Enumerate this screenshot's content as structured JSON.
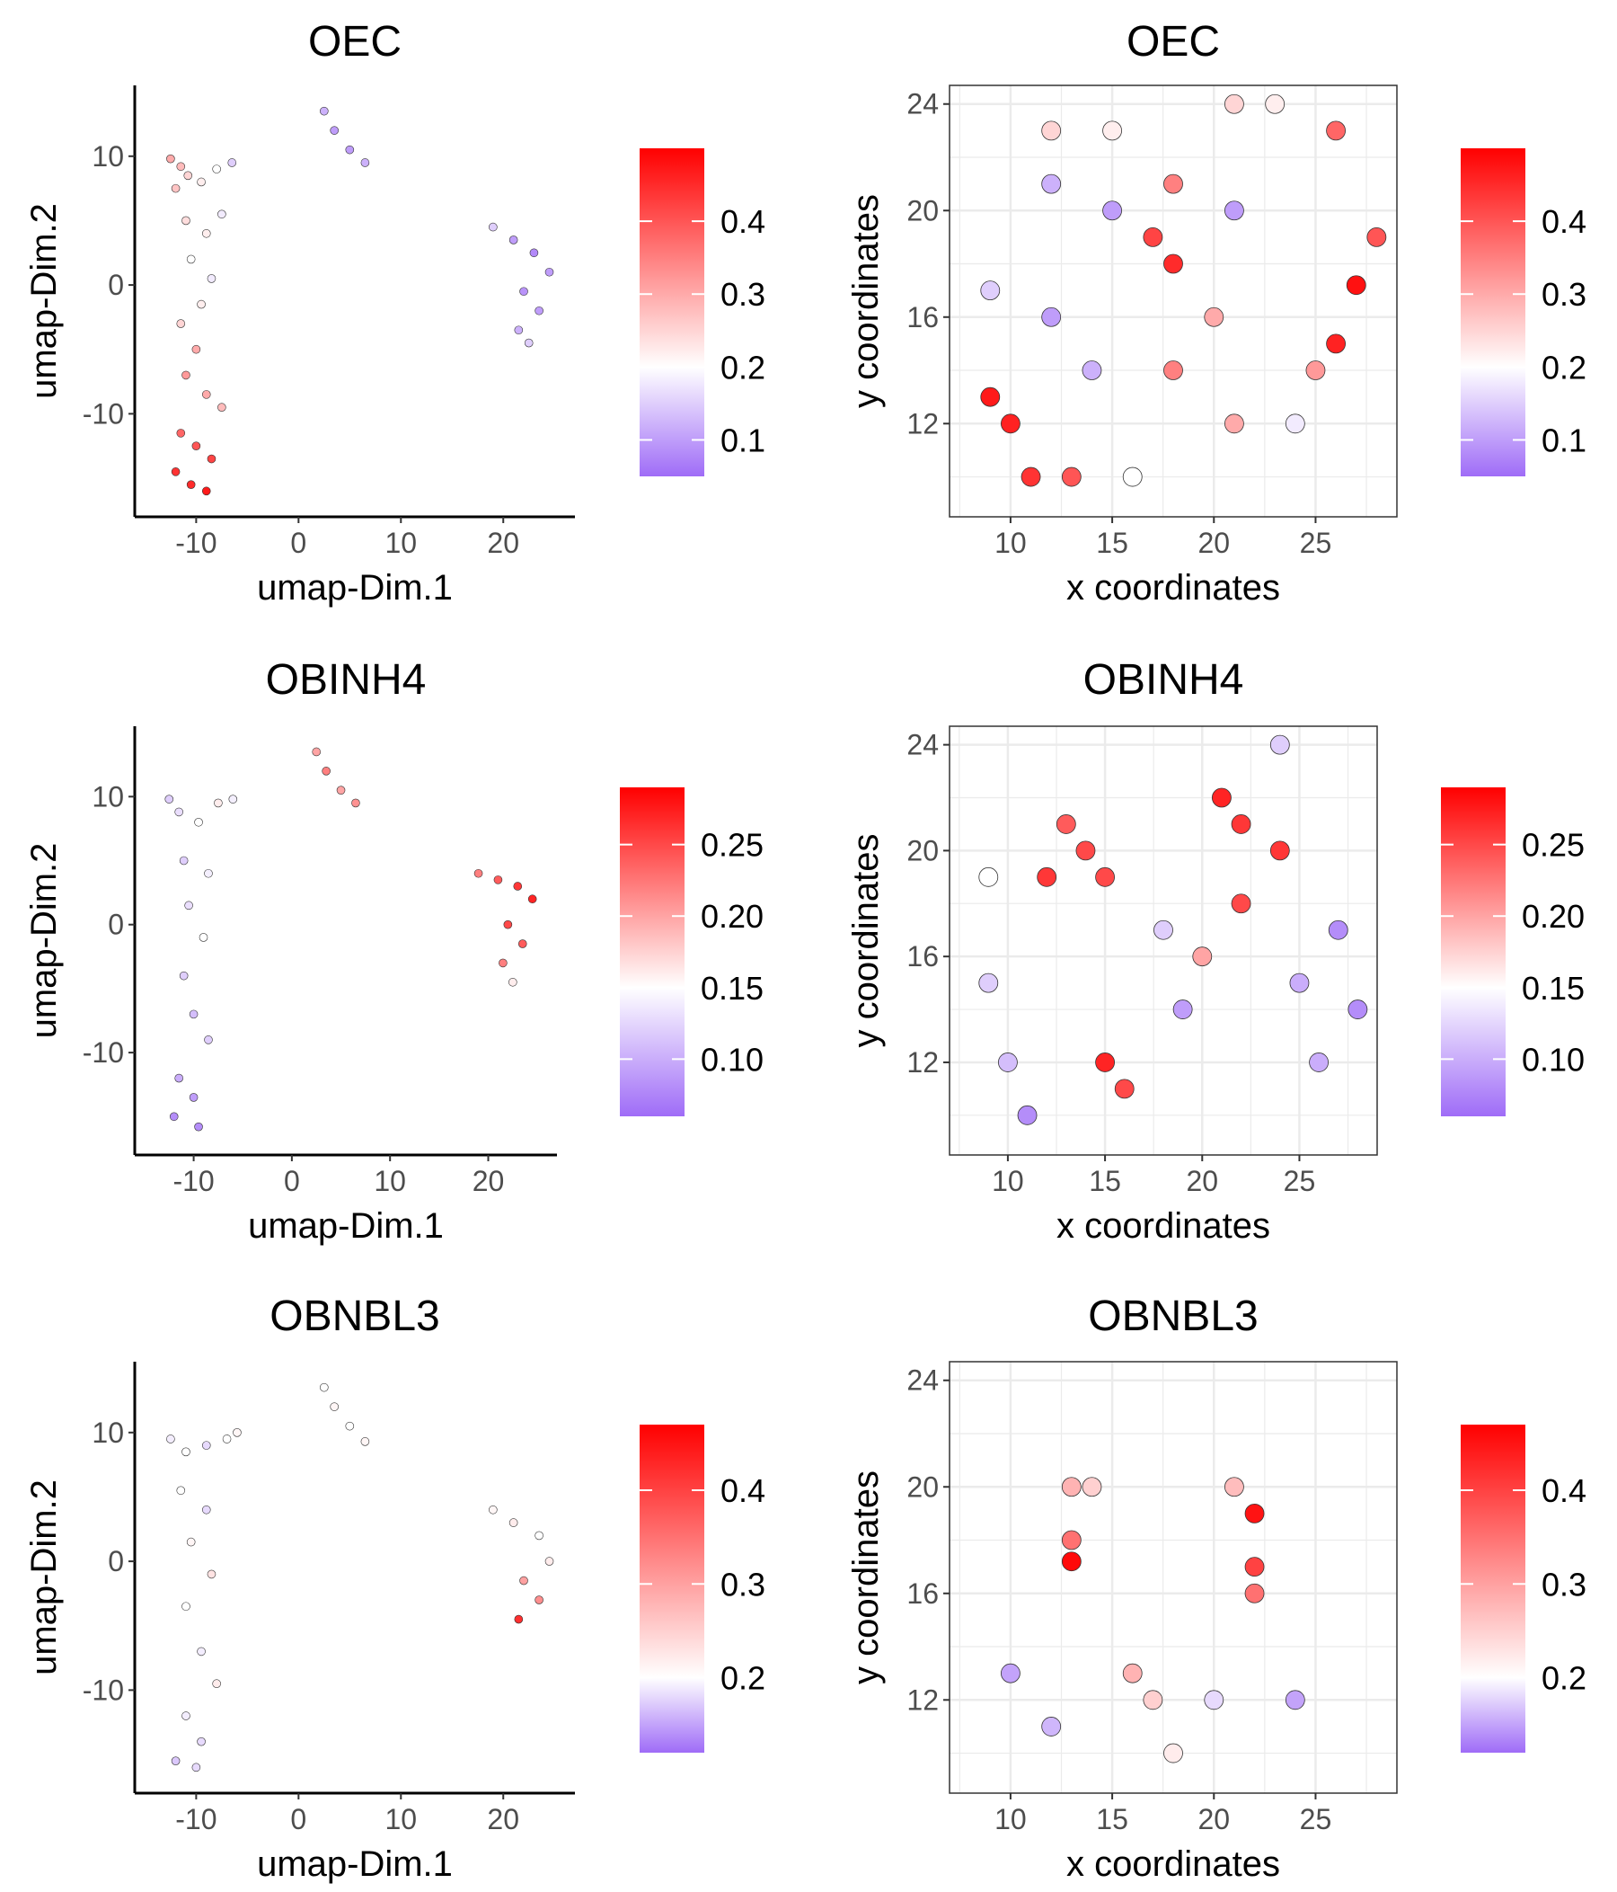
{
  "colors": {
    "low": "#9f6cf7",
    "mid": "#ffffff",
    "high": "#ff0000",
    "point_stroke": "#333333",
    "grid": "#ebebeb",
    "panel_border": "#333333",
    "axis_line": "#000000"
  },
  "chart_data": [
    {
      "type": "scatter",
      "title": "OEC",
      "xlabel": "umap-Dim.1",
      "ylabel": "umap-Dim.2",
      "xlim": [
        -16,
        27
      ],
      "ylim": [
        -18,
        15.5
      ],
      "x_ticks": [
        -10,
        0,
        10,
        20
      ],
      "y_ticks": [
        -10,
        0,
        10
      ],
      "grid": false,
      "legend_position": "right",
      "color_range": [
        0.05,
        0.5
      ],
      "color_mid": 0.2,
      "color_ticks": [
        0.1,
        0.2,
        0.3,
        0.4
      ],
      "points": [
        {
          "x": -12.5,
          "y": 9.8,
          "value": 0.3
        },
        {
          "x": -11.5,
          "y": 9.2,
          "value": 0.28
        },
        {
          "x": -10.8,
          "y": 8.5,
          "value": 0.25
        },
        {
          "x": -12.0,
          "y": 7.5,
          "value": 0.27
        },
        {
          "x": -9.5,
          "y": 8.0,
          "value": 0.22
        },
        {
          "x": -8.0,
          "y": 9.0,
          "value": 0.2
        },
        {
          "x": -6.5,
          "y": 9.5,
          "value": 0.15
        },
        {
          "x": -11.0,
          "y": 5.0,
          "value": 0.24
        },
        {
          "x": -9.0,
          "y": 4.0,
          "value": 0.22
        },
        {
          "x": -7.5,
          "y": 5.5,
          "value": 0.18
        },
        {
          "x": -10.5,
          "y": 2.0,
          "value": 0.2
        },
        {
          "x": -8.5,
          "y": 0.5,
          "value": 0.18
        },
        {
          "x": -9.5,
          "y": -1.5,
          "value": 0.22
        },
        {
          "x": -11.5,
          "y": -3.0,
          "value": 0.25
        },
        {
          "x": -10.0,
          "y": -5.0,
          "value": 0.3
        },
        {
          "x": -11.0,
          "y": -7.0,
          "value": 0.32
        },
        {
          "x": -9.0,
          "y": -8.5,
          "value": 0.3
        },
        {
          "x": -7.5,
          "y": -9.5,
          "value": 0.28
        },
        {
          "x": -11.5,
          "y": -11.5,
          "value": 0.38
        },
        {
          "x": -10.0,
          "y": -12.5,
          "value": 0.4
        },
        {
          "x": -8.5,
          "y": -13.5,
          "value": 0.42
        },
        {
          "x": -12.0,
          "y": -14.5,
          "value": 0.44
        },
        {
          "x": -10.5,
          "y": -15.5,
          "value": 0.45
        },
        {
          "x": -9.0,
          "y": -16.0,
          "value": 0.47
        },
        {
          "x": 2.5,
          "y": 13.5,
          "value": 0.12
        },
        {
          "x": 3.5,
          "y": 12.0,
          "value": 0.1
        },
        {
          "x": 5.0,
          "y": 10.5,
          "value": 0.1
        },
        {
          "x": 6.5,
          "y": 9.5,
          "value": 0.12
        },
        {
          "x": 19.0,
          "y": 4.5,
          "value": 0.15
        },
        {
          "x": 21.0,
          "y": 3.5,
          "value": 0.1
        },
        {
          "x": 23.0,
          "y": 2.5,
          "value": 0.08
        },
        {
          "x": 24.5,
          "y": 1.0,
          "value": 0.1
        },
        {
          "x": 22.0,
          "y": -0.5,
          "value": 0.09
        },
        {
          "x": 23.5,
          "y": -2.0,
          "value": 0.1
        },
        {
          "x": 21.5,
          "y": -3.5,
          "value": 0.12
        },
        {
          "x": 22.5,
          "y": -4.5,
          "value": 0.15
        }
      ]
    },
    {
      "type": "scatter",
      "title": "OEC",
      "xlabel": "x coordinates",
      "ylabel": "y coordinates",
      "xlim": [
        7,
        29
      ],
      "ylim": [
        8.5,
        24.7
      ],
      "x_ticks": [
        10,
        15,
        20,
        25
      ],
      "y_ticks": [
        12,
        16,
        20,
        24
      ],
      "grid": true,
      "legend_position": "right",
      "color_range": [
        0.05,
        0.5
      ],
      "color_mid": 0.2,
      "color_ticks": [
        0.1,
        0.2,
        0.3,
        0.4
      ],
      "points": [
        {
          "x": 12,
          "y": 23,
          "value": 0.25
        },
        {
          "x": 15,
          "y": 23,
          "value": 0.22
        },
        {
          "x": 21,
          "y": 24,
          "value": 0.25
        },
        {
          "x": 23,
          "y": 24,
          "value": 0.22
        },
        {
          "x": 18,
          "y": 21,
          "value": 0.35
        },
        {
          "x": 26,
          "y": 23,
          "value": 0.38
        },
        {
          "x": 12,
          "y": 21,
          "value": 0.12
        },
        {
          "x": 17,
          "y": 19,
          "value": 0.42
        },
        {
          "x": 18,
          "y": 18,
          "value": 0.45
        },
        {
          "x": 28,
          "y": 19,
          "value": 0.4
        },
        {
          "x": 27,
          "y": 17.2,
          "value": 0.48
        },
        {
          "x": 26,
          "y": 15,
          "value": 0.46
        },
        {
          "x": 15,
          "y": 20,
          "value": 0.1
        },
        {
          "x": 21,
          "y": 20,
          "value": 0.1
        },
        {
          "x": 9,
          "y": 17,
          "value": 0.15
        },
        {
          "x": 12,
          "y": 16,
          "value": 0.1
        },
        {
          "x": 20,
          "y": 16,
          "value": 0.3
        },
        {
          "x": 14,
          "y": 14,
          "value": 0.12
        },
        {
          "x": 18,
          "y": 14,
          "value": 0.35
        },
        {
          "x": 9,
          "y": 13,
          "value": 0.47
        },
        {
          "x": 10,
          "y": 12,
          "value": 0.46
        },
        {
          "x": 11,
          "y": 10,
          "value": 0.44
        },
        {
          "x": 13,
          "y": 10,
          "value": 0.4
        },
        {
          "x": 16,
          "y": 10,
          "value": 0.2
        },
        {
          "x": 21,
          "y": 12,
          "value": 0.3
        },
        {
          "x": 25,
          "y": 14,
          "value": 0.32
        },
        {
          "x": 24,
          "y": 12,
          "value": 0.18
        }
      ]
    },
    {
      "type": "scatter",
      "title": "OBINH4",
      "xlabel": "umap-Dim.1",
      "ylabel": "umap-Dim.2",
      "xlim": [
        -16,
        27
      ],
      "ylim": [
        -18,
        15.5
      ],
      "x_ticks": [
        -10,
        0,
        10,
        20
      ],
      "y_ticks": [
        -10,
        0,
        10
      ],
      "grid": false,
      "legend_position": "right",
      "color_range": [
        0.06,
        0.29
      ],
      "color_mid": 0.15,
      "color_ticks": [
        0.1,
        0.15,
        0.2,
        0.25
      ],
      "points": [
        {
          "x": -12.5,
          "y": 9.8,
          "value": 0.12
        },
        {
          "x": -11.5,
          "y": 8.8,
          "value": 0.13
        },
        {
          "x": -9.5,
          "y": 8.0,
          "value": 0.15
        },
        {
          "x": -7.5,
          "y": 9.5,
          "value": 0.16
        },
        {
          "x": -6.0,
          "y": 9.8,
          "value": 0.14
        },
        {
          "x": -11.0,
          "y": 5.0,
          "value": 0.12
        },
        {
          "x": -8.5,
          "y": 4.0,
          "value": 0.14
        },
        {
          "x": -10.5,
          "y": 1.5,
          "value": 0.13
        },
        {
          "x": -9.0,
          "y": -1.0,
          "value": 0.15
        },
        {
          "x": -11.0,
          "y": -4.0,
          "value": 0.12
        },
        {
          "x": -10.0,
          "y": -7.0,
          "value": 0.11
        },
        {
          "x": -8.5,
          "y": -9.0,
          "value": 0.12
        },
        {
          "x": -11.5,
          "y": -12.0,
          "value": 0.1
        },
        {
          "x": -10.0,
          "y": -13.5,
          "value": 0.09
        },
        {
          "x": -12.0,
          "y": -15.0,
          "value": 0.08
        },
        {
          "x": -9.5,
          "y": -15.8,
          "value": 0.08
        },
        {
          "x": 2.5,
          "y": 13.5,
          "value": 0.2
        },
        {
          "x": 3.5,
          "y": 12.0,
          "value": 0.22
        },
        {
          "x": 5.0,
          "y": 10.5,
          "value": 0.2
        },
        {
          "x": 6.5,
          "y": 9.5,
          "value": 0.21
        },
        {
          "x": 19.0,
          "y": 4.0,
          "value": 0.22
        },
        {
          "x": 21.0,
          "y": 3.5,
          "value": 0.24
        },
        {
          "x": 23.0,
          "y": 3.0,
          "value": 0.26
        },
        {
          "x": 24.5,
          "y": 2.0,
          "value": 0.27
        },
        {
          "x": 22.0,
          "y": 0.0,
          "value": 0.25
        },
        {
          "x": 23.5,
          "y": -1.5,
          "value": 0.24
        },
        {
          "x": 21.5,
          "y": -3.0,
          "value": 0.22
        },
        {
          "x": 22.5,
          "y": -4.5,
          "value": 0.16
        }
      ]
    },
    {
      "type": "scatter",
      "title": "OBINH4",
      "xlabel": "x coordinates",
      "ylabel": "y coordinates",
      "xlim": [
        7,
        29
      ],
      "ylim": [
        8.5,
        24.7
      ],
      "x_ticks": [
        10,
        15,
        20,
        25
      ],
      "y_ticks": [
        12,
        16,
        20,
        24
      ],
      "grid": true,
      "legend_position": "right",
      "color_range": [
        0.06,
        0.29
      ],
      "color_mid": 0.15,
      "color_ticks": [
        0.1,
        0.15,
        0.2,
        0.25
      ],
      "points": [
        {
          "x": 13,
          "y": 21,
          "value": 0.24
        },
        {
          "x": 14,
          "y": 20,
          "value": 0.25
        },
        {
          "x": 12,
          "y": 19,
          "value": 0.26
        },
        {
          "x": 15,
          "y": 19,
          "value": 0.25
        },
        {
          "x": 21,
          "y": 22,
          "value": 0.27
        },
        {
          "x": 22,
          "y": 21,
          "value": 0.26
        },
        {
          "x": 24,
          "y": 20,
          "value": 0.26
        },
        {
          "x": 22,
          "y": 18,
          "value": 0.25
        },
        {
          "x": 15,
          "y": 12,
          "value": 0.27
        },
        {
          "x": 16,
          "y": 11,
          "value": 0.25
        },
        {
          "x": 24,
          "y": 24,
          "value": 0.12
        },
        {
          "x": 27,
          "y": 17,
          "value": 0.08
        },
        {
          "x": 28,
          "y": 14,
          "value": 0.08
        },
        {
          "x": 19,
          "y": 14,
          "value": 0.09
        },
        {
          "x": 9,
          "y": 15,
          "value": 0.12
        },
        {
          "x": 10,
          "y": 12,
          "value": 0.11
        },
        {
          "x": 11,
          "y": 10,
          "value": 0.08
        },
        {
          "x": 9,
          "y": 19,
          "value": 0.15
        },
        {
          "x": 18,
          "y": 17,
          "value": 0.12
        },
        {
          "x": 25,
          "y": 15,
          "value": 0.1
        },
        {
          "x": 26,
          "y": 12,
          "value": 0.1
        },
        {
          "x": 20,
          "y": 16,
          "value": 0.2
        }
      ]
    },
    {
      "type": "scatter",
      "title": "OBNBL3",
      "xlabel": "umap-Dim.1",
      "ylabel": "umap-Dim.2",
      "xlim": [
        -16,
        27
      ],
      "ylim": [
        -18,
        15.5
      ],
      "x_ticks": [
        -10,
        0,
        10,
        20
      ],
      "y_ticks": [
        -10,
        0,
        10
      ],
      "grid": false,
      "legend_position": "right",
      "color_range": [
        0.12,
        0.47
      ],
      "color_mid": 0.2,
      "color_ticks": [
        0.2,
        0.3,
        0.4
      ],
      "points": [
        {
          "x": -12.5,
          "y": 9.5,
          "value": 0.19
        },
        {
          "x": -11.0,
          "y": 8.5,
          "value": 0.2
        },
        {
          "x": -9.0,
          "y": 9.0,
          "value": 0.18
        },
        {
          "x": -7.0,
          "y": 9.5,
          "value": 0.2
        },
        {
          "x": -6.0,
          "y": 10.0,
          "value": 0.21
        },
        {
          "x": -11.5,
          "y": 5.5,
          "value": 0.2
        },
        {
          "x": -9.0,
          "y": 4.0,
          "value": 0.18
        },
        {
          "x": -10.5,
          "y": 1.5,
          "value": 0.21
        },
        {
          "x": -8.5,
          "y": -1.0,
          "value": 0.23
        },
        {
          "x": -11.0,
          "y": -3.5,
          "value": 0.2
        },
        {
          "x": -9.5,
          "y": -7.0,
          "value": 0.19
        },
        {
          "x": -8.0,
          "y": -9.5,
          "value": 0.22
        },
        {
          "x": -11.0,
          "y": -12.0,
          "value": 0.19
        },
        {
          "x": -9.5,
          "y": -14.0,
          "value": 0.18
        },
        {
          "x": -12.0,
          "y": -15.5,
          "value": 0.17
        },
        {
          "x": -10.0,
          "y": -16.0,
          "value": 0.18
        },
        {
          "x": 2.5,
          "y": 13.5,
          "value": 0.2
        },
        {
          "x": 3.5,
          "y": 12.0,
          "value": 0.21
        },
        {
          "x": 5.0,
          "y": 10.5,
          "value": 0.2
        },
        {
          "x": 6.5,
          "y": 9.3,
          "value": 0.21
        },
        {
          "x": 19.0,
          "y": 4.0,
          "value": 0.21
        },
        {
          "x": 21.0,
          "y": 3.0,
          "value": 0.22
        },
        {
          "x": 23.5,
          "y": 2.0,
          "value": 0.2
        },
        {
          "x": 24.5,
          "y": 0.0,
          "value": 0.22
        },
        {
          "x": 22.0,
          "y": -1.5,
          "value": 0.3
        },
        {
          "x": 23.5,
          "y": -3.0,
          "value": 0.32
        },
        {
          "x": 21.5,
          "y": -4.5,
          "value": 0.42
        }
      ]
    },
    {
      "type": "scatter",
      "title": "OBNBL3",
      "xlabel": "x coordinates",
      "ylabel": "y coordinates",
      "xlim": [
        7,
        29
      ],
      "ylim": [
        8.5,
        24.7
      ],
      "x_ticks": [
        10,
        15,
        20,
        25
      ],
      "y_ticks": [
        12,
        16,
        20,
        24
      ],
      "grid": true,
      "legend_position": "right",
      "color_range": [
        0.12,
        0.47
      ],
      "color_mid": 0.2,
      "color_ticks": [
        0.2,
        0.3,
        0.4
      ],
      "points": [
        {
          "x": 13,
          "y": 17.2,
          "value": 0.46
        },
        {
          "x": 22,
          "y": 19,
          "value": 0.45
        },
        {
          "x": 22,
          "y": 17,
          "value": 0.4
        },
        {
          "x": 22,
          "y": 16,
          "value": 0.35
        },
        {
          "x": 13,
          "y": 18,
          "value": 0.35
        },
        {
          "x": 13,
          "y": 20,
          "value": 0.28
        },
        {
          "x": 21,
          "y": 20,
          "value": 0.27
        },
        {
          "x": 14,
          "y": 20,
          "value": 0.25
        },
        {
          "x": 16,
          "y": 13,
          "value": 0.28
        },
        {
          "x": 17,
          "y": 12,
          "value": 0.25
        },
        {
          "x": 10,
          "y": 13,
          "value": 0.15
        },
        {
          "x": 12,
          "y": 11,
          "value": 0.16
        },
        {
          "x": 24,
          "y": 12,
          "value": 0.15
        },
        {
          "x": 20,
          "y": 12,
          "value": 0.18
        },
        {
          "x": 18,
          "y": 10,
          "value": 0.22
        }
      ]
    }
  ]
}
